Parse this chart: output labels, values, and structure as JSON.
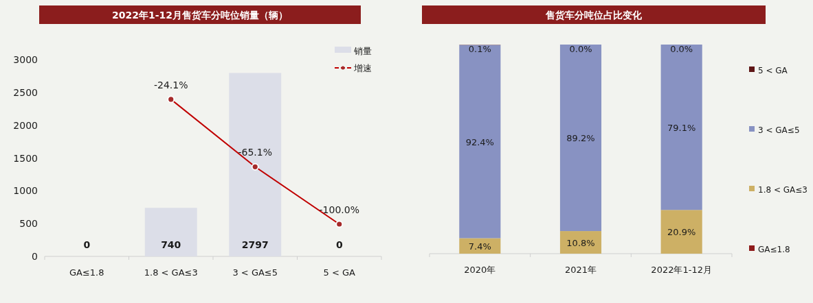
{
  "chart_data": [
    {
      "type": "bar",
      "title": "2022年1-12月售货车分吨位销量（辆）",
      "categories": [
        "GA≤1.8",
        "1.8 < GA≤3",
        "3 < GA≤5",
        "5 < GA"
      ],
      "series": [
        {
          "name": "销量",
          "type": "bar",
          "color": "#dcdee8",
          "values": [
            0,
            740,
            2797,
            0
          ],
          "value_labels": [
            "0",
            "740",
            "2797",
            "0"
          ]
        },
        {
          "name": "增速",
          "type": "line",
          "axis": "y2",
          "color": "#c00000",
          "marker": "circle",
          "values": [
            null,
            -24.1,
            -65.1,
            -100.0
          ],
          "value_labels": [
            null,
            "-24.1%",
            "-65.1%",
            "-100.0%"
          ]
        }
      ],
      "ylim": [
        0,
        3000
      ],
      "yticks": [
        0,
        500,
        1000,
        1500,
        2000,
        2500,
        3000
      ],
      "grid": false,
      "legend": "top right"
    },
    {
      "type": "bar",
      "title": "售货车分吨位占比变化",
      "stacked": true,
      "categories": [
        "2020年",
        "2021年",
        "2022年1-12月"
      ],
      "series": [
        {
          "name": "GA≤1.8",
          "color": "#8e1b1b",
          "values": [
            0,
            0,
            0
          ]
        },
        {
          "name": "1.8 < GA≤3",
          "color": "#cdb065",
          "values": [
            7.4,
            10.8,
            20.9
          ],
          "value_labels": [
            "7.4%",
            "10.8%",
            "20.9%"
          ]
        },
        {
          "name": "3 < GA≤5",
          "color": "#8892c2",
          "values": [
            92.4,
            89.2,
            79.1
          ],
          "value_labels": [
            "92.4%",
            "89.2%",
            "79.1%"
          ]
        },
        {
          "name": "5 < GA",
          "color": "#5e1616",
          "values": [
            0.1,
            0,
            0
          ],
          "value_labels": [
            "0.1%",
            "0.0%",
            "0.0%"
          ]
        }
      ],
      "ylim": [
        0,
        100
      ],
      "tick_labels": "x",
      "grid": false,
      "legend": "right"
    }
  ]
}
